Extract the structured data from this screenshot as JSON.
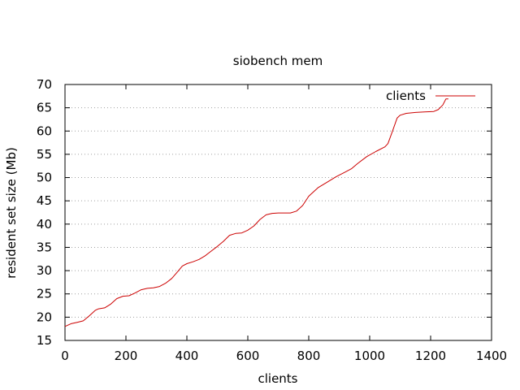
{
  "chart_data": {
    "type": "line",
    "title": "siobench mem",
    "xlabel": "clients",
    "ylabel": "resident set size (Mb)",
    "xlim": [
      0,
      1400
    ],
    "ylim": [
      15,
      70
    ],
    "xticks": [
      0,
      200,
      400,
      600,
      800,
      1000,
      1200,
      1400
    ],
    "yticks": [
      15,
      20,
      25,
      30,
      35,
      40,
      45,
      50,
      55,
      60,
      65,
      70
    ],
    "grid": "horizontal dotted",
    "legend_position": "top-right",
    "series": [
      {
        "name": "clients",
        "color": "#cc0000",
        "x": [
          0,
          10,
          20,
          40,
          60,
          80,
          100,
          110,
          130,
          150,
          170,
          190,
          210,
          230,
          250,
          270,
          290,
          310,
          330,
          350,
          370,
          385,
          400,
          420,
          440,
          460,
          480,
          500,
          520,
          540,
          560,
          580,
          600,
          620,
          640,
          660,
          680,
          700,
          720,
          740,
          760,
          780,
          800,
          830,
          860,
          890,
          920,
          940,
          960,
          990,
          1020,
          1050,
          1060,
          1075,
          1090,
          1100,
          1120,
          1150,
          1180,
          1210,
          1225,
          1240,
          1250,
          1258
        ],
        "y": [
          18,
          18.3,
          18.6,
          18.9,
          19.2,
          20.3,
          21.5,
          21.8,
          22.0,
          22.8,
          24.0,
          24.5,
          24.6,
          25.2,
          25.9,
          26.2,
          26.3,
          26.6,
          27.3,
          28.3,
          29.8,
          31.0,
          31.5,
          31.9,
          32.4,
          33.2,
          34.2,
          35.2,
          36.3,
          37.6,
          38.0,
          38.1,
          38.7,
          39.6,
          41.0,
          42.0,
          42.3,
          42.4,
          42.4,
          42.4,
          42.8,
          44.0,
          46.0,
          47.8,
          49.0,
          50.2,
          51.2,
          51.9,
          53.0,
          54.5,
          55.6,
          56.6,
          57.3,
          60.0,
          62.8,
          63.4,
          63.8,
          64.0,
          64.1,
          64.2,
          64.6,
          65.6,
          66.9,
          66.9
        ]
      }
    ]
  }
}
